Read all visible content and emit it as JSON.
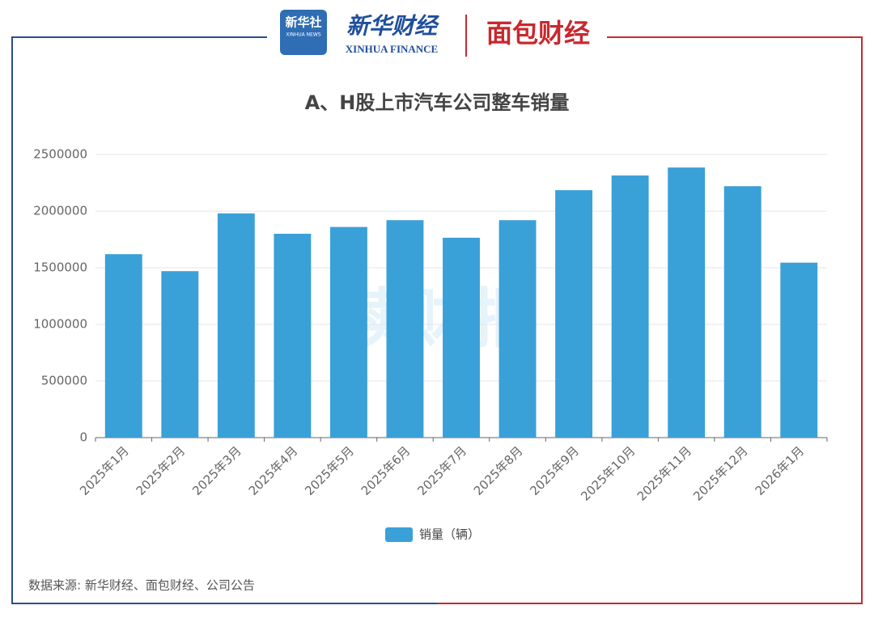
{
  "header": {
    "logo1_cn": "新华社",
    "logo1_en": "XINHUA NEWS",
    "logo2_cn": "新华财经",
    "logo2_en": "XINHUA FINANCE",
    "logo3": "面包财经"
  },
  "chart_data": {
    "type": "bar",
    "title": "A、H股上市汽车公司整车销量",
    "categories": [
      "2025年1月",
      "2025年2月",
      "2025年3月",
      "2025年4月",
      "2025年5月",
      "2025年6月",
      "2025年7月",
      "2025年8月",
      "2025年9月",
      "2025年10月",
      "2025年11月",
      "2025年12月",
      "2026年1月"
    ],
    "series": [
      {
        "name": "销量（辆）",
        "color": "#3aa0d8",
        "values": [
          1620000,
          1470000,
          1980000,
          1800000,
          1860000,
          1920000,
          1765000,
          1920000,
          2185000,
          2315000,
          2385000,
          2220000,
          1545000
        ]
      }
    ],
    "ylim": [
      0,
      2500000
    ],
    "yticks": [
      0,
      500000,
      1000000,
      1500000,
      2000000,
      2500000
    ],
    "grid": true,
    "watermark": "读财报"
  },
  "source": "数据来源: 新华财经、面包财经、公司公告"
}
